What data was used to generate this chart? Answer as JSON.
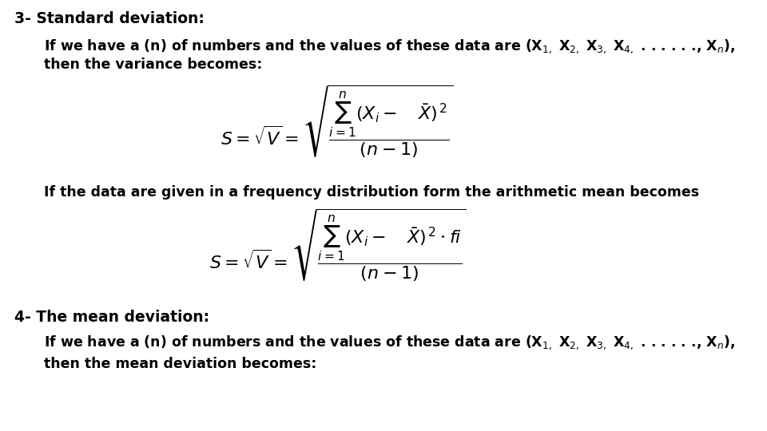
{
  "background_color": "#ffffff",
  "text_color": "#000000",
  "heading1": "3- Standard deviation:",
  "line1a": "If we have a (n) of numbers and the values of these data are (X",
  "line1b": " X",
  "line1c": " X",
  "line1d": " X",
  "line1e": ", . . . . . ., X",
  "line1f": "),",
  "line2": "then the variance becomes:",
  "line3": "If the data are given in a frequency distribution form the arithmetic mean becomes",
  "heading2": "4- The mean deviation:",
  "line4a": "If we have a (n) of numbers and the values of these data are (X",
  "line4f": "),",
  "line5": "then the mean deviation becomes:",
  "fs_heading": 13.5,
  "fs_body": 12.5,
  "fs_formula": 13,
  "indent_heading": 0.022,
  "indent_body": 0.068
}
